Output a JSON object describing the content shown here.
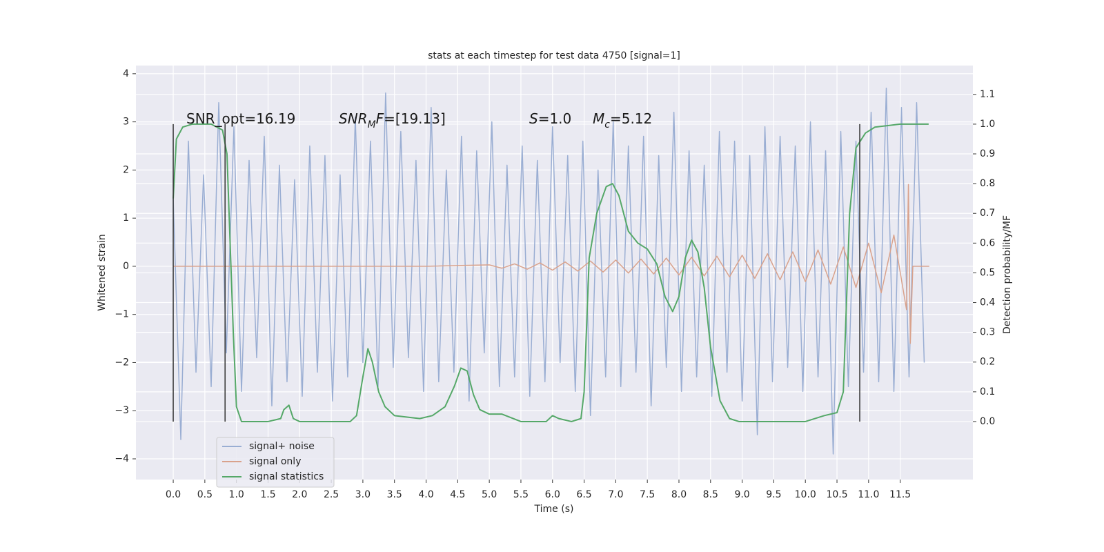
{
  "chart_data": {
    "type": "line",
    "title": "stats at each timestep for test data 4750 [signal=1]",
    "xlabel": "Time (s)",
    "ylabel": "Whitened strain",
    "y2label": "Detection probability/MF",
    "xlim": [
      -0.59,
      12.65
    ],
    "ylim": [
      -4.43,
      4.17
    ],
    "y2lim": [
      -0.195,
      1.197
    ],
    "xticks": [
      {
        "value": 0,
        "label": "0.0"
      },
      {
        "value": 0.5,
        "label": "0.5"
      },
      {
        "value": 1,
        "label": "1.0"
      },
      {
        "value": 1.5,
        "label": "1.5"
      },
      {
        "value": 2,
        "label": "2.0"
      },
      {
        "value": 2.5,
        "label": "2.5"
      },
      {
        "value": 3,
        "label": "3.0"
      },
      {
        "value": 3.5,
        "label": "3.5"
      },
      {
        "value": 4,
        "label": "4.0"
      },
      {
        "value": 4.5,
        "label": "4.5"
      },
      {
        "value": 5,
        "label": "5.0"
      },
      {
        "value": 5.5,
        "label": "5.5"
      },
      {
        "value": 6,
        "label": "6.0"
      },
      {
        "value": 6.5,
        "label": "6.5"
      },
      {
        "value": 7,
        "label": "7.0"
      },
      {
        "value": 7.5,
        "label": "7.5"
      },
      {
        "value": 8,
        "label": "8.0"
      },
      {
        "value": 8.5,
        "label": "8.5"
      },
      {
        "value": 9,
        "label": "9.0"
      },
      {
        "value": 9.5,
        "label": "9.5"
      },
      {
        "value": 10,
        "label": "10.0"
      },
      {
        "value": 10.5,
        "label": "10.5"
      },
      {
        "value": 11,
        "label": "11.0"
      },
      {
        "value": 11.5,
        "label": "11.5"
      }
    ],
    "yticks": [
      {
        "value": -4,
        "label": "−4"
      },
      {
        "value": -3,
        "label": "−3"
      },
      {
        "value": -2,
        "label": "−2"
      },
      {
        "value": -1,
        "label": "−1"
      },
      0,
      1,
      2,
      3,
      4
    ],
    "y2ticks": [
      {
        "value": 0,
        "label": "0.0"
      },
      {
        "value": 0.1,
        "label": "0.1"
      },
      {
        "value": 0.2,
        "label": "0.2"
      },
      {
        "value": 0.3,
        "label": "0.3"
      },
      {
        "value": 0.4,
        "label": "0.4"
      },
      {
        "value": 0.5,
        "label": "0.5"
      },
      {
        "value": 0.6,
        "label": "0.6"
      },
      {
        "value": 0.7,
        "label": "0.7"
      },
      {
        "value": 0.8,
        "label": "0.8"
      },
      {
        "value": 0.9,
        "label": "0.9"
      },
      {
        "value": 1,
        "label": "1.0"
      },
      {
        "value": 1.1,
        "label": "1.1"
      }
    ],
    "grid": true,
    "legend": "lower left",
    "series": [
      {
        "name": "signal+ noise",
        "color": "#9aaed3",
        "x": [
          0,
          0.12,
          0.24,
          0.36,
          0.48,
          0.6,
          0.72,
          0.84,
          0.96,
          1.08,
          1.2,
          1.32,
          1.44,
          1.56,
          1.68,
          1.8,
          1.92,
          2.04,
          2.16,
          2.28,
          2.4,
          2.52,
          2.64,
          2.76,
          2.88,
          3,
          3.12,
          3.24,
          3.36,
          3.48,
          3.6,
          3.72,
          3.84,
          3.96,
          4.08,
          4.2,
          4.32,
          4.44,
          4.56,
          4.68,
          4.8,
          4.92,
          5.04,
          5.16,
          5.28,
          5.4,
          5.52,
          5.64,
          5.76,
          5.88,
          6,
          6.12,
          6.24,
          6.36,
          6.48,
          6.6,
          6.72,
          6.84,
          6.96,
          7.08,
          7.2,
          7.32,
          7.44,
          7.56,
          7.68,
          7.8,
          7.92,
          8.04,
          8.16,
          8.28,
          8.4,
          8.52,
          8.64,
          8.76,
          8.88,
          9,
          9.12,
          9.24,
          9.36,
          9.48,
          9.6,
          9.72,
          9.84,
          9.96,
          10.08,
          10.2,
          10.32,
          10.44,
          10.56,
          10.68,
          10.8,
          10.92,
          11.04,
          11.16,
          11.28,
          11.4,
          11.52,
          11.64,
          11.76,
          11.88
        ],
        "values": [
          1.4,
          -3.6,
          2.6,
          -2.2,
          1.9,
          -2.5,
          3.4,
          -1.8,
          2.9,
          -2.6,
          2.2,
          -1.9,
          2.7,
          -2.9,
          2.1,
          -2.4,
          1.8,
          -2.7,
          2.5,
          -2.2,
          2.3,
          -2.8,
          1.9,
          -2.3,
          3.1,
          -2.0,
          2.6,
          -2.5,
          3.6,
          -2.1,
          2.8,
          -1.9,
          2.2,
          -2.6,
          3.3,
          -2.4,
          2.0,
          -2.2,
          2.7,
          -2.8,
          2.4,
          -1.8,
          3.0,
          -2.5,
          2.1,
          -2.3,
          2.5,
          -2.7,
          2.2,
          -2.4,
          2.9,
          -2.0,
          2.3,
          -2.6,
          2.6,
          -3.1,
          2.0,
          -2.3,
          3.0,
          -2.5,
          2.5,
          -2.2,
          2.7,
          -2.9,
          2.3,
          -2.1,
          3.2,
          -2.6,
          2.4,
          -2.3,
          2.1,
          -2.7,
          2.8,
          -2.2,
          2.6,
          -2.8,
          2.3,
          -3.5,
          2.9,
          -2.4,
          2.7,
          -2.1,
          2.5,
          -2.6,
          3.0,
          -2.3,
          2.4,
          -3.9,
          2.8,
          -2.5,
          2.6,
          -2.2,
          3.2,
          -2.4,
          3.7,
          -2.6,
          3.3,
          -2.3,
          3.4,
          -2.0
        ]
      },
      {
        "name": "signal only",
        "color": "#d9a28c",
        "x": [
          0,
          4.0,
          5.0,
          5.2,
          5.4,
          5.6,
          5.8,
          6.0,
          6.2,
          6.4,
          6.6,
          6.8,
          7.0,
          7.2,
          7.4,
          7.6,
          7.8,
          8.0,
          8.2,
          8.4,
          8.6,
          8.8,
          9.0,
          9.2,
          9.4,
          9.6,
          9.8,
          10.0,
          10.2,
          10.4,
          10.6,
          10.8,
          11.0,
          11.2,
          11.4,
          11.6,
          11.63,
          11.66,
          11.7,
          11.96
        ],
        "values": [
          0,
          0,
          0.03,
          -0.04,
          0.05,
          -0.06,
          0.07,
          -0.08,
          0.09,
          -0.1,
          0.11,
          -0.12,
          0.13,
          -0.14,
          0.15,
          -0.16,
          0.17,
          -0.18,
          0.19,
          -0.2,
          0.21,
          -0.22,
          0.23,
          -0.25,
          0.26,
          -0.28,
          0.3,
          -0.32,
          0.34,
          -0.37,
          0.4,
          -0.44,
          0.48,
          -0.55,
          0.65,
          -0.9,
          1.7,
          -1.6,
          0,
          0
        ]
      },
      {
        "name": "signal statistics",
        "color": "#55a868",
        "axis": "y2",
        "x": [
          0,
          0.05,
          0.15,
          0.3,
          0.6,
          0.78,
          0.85,
          0.95,
          1.0,
          1.08,
          1.5,
          1.7,
          1.75,
          1.83,
          1.9,
          2.0,
          2.8,
          2.9,
          3.0,
          3.08,
          3.15,
          3.25,
          3.35,
          3.5,
          3.9,
          4.1,
          4.3,
          4.45,
          4.55,
          4.65,
          4.75,
          4.85,
          5.0,
          5.2,
          5.5,
          5.9,
          6.0,
          6.1,
          6.3,
          6.45,
          6.5,
          6.58,
          6.7,
          6.85,
          6.95,
          7.05,
          7.2,
          7.35,
          7.5,
          7.65,
          7.78,
          7.9,
          8.0,
          8.1,
          8.2,
          8.3,
          8.4,
          8.5,
          8.65,
          8.8,
          8.95,
          10.0,
          10.3,
          10.5,
          10.6,
          10.7,
          10.8,
          10.95,
          11.1,
          11.5,
          11.95
        ],
        "values": [
          0.75,
          0.95,
          0.99,
          1.0,
          1.0,
          0.98,
          0.9,
          0.3,
          0.05,
          0.0,
          0.0,
          0.01,
          0.04,
          0.055,
          0.01,
          0.0,
          0.0,
          0.02,
          0.15,
          0.245,
          0.2,
          0.1,
          0.05,
          0.02,
          0.01,
          0.02,
          0.05,
          0.12,
          0.18,
          0.17,
          0.09,
          0.04,
          0.025,
          0.025,
          0.0,
          0.0,
          0.02,
          0.01,
          0.0,
          0.01,
          0.1,
          0.55,
          0.7,
          0.79,
          0.8,
          0.76,
          0.64,
          0.6,
          0.58,
          0.53,
          0.42,
          0.37,
          0.42,
          0.55,
          0.61,
          0.57,
          0.45,
          0.25,
          0.07,
          0.01,
          0.0,
          0.0,
          0.02,
          0.03,
          0.1,
          0.7,
          0.92,
          0.97,
          0.99,
          1.0,
          1.0
        ]
      }
    ],
    "vlines": {
      "color": "#333333",
      "axis": "y2",
      "x": [
        0,
        0.82,
        10.86
      ],
      "ymin": 0,
      "ymax": 1
    },
    "annotations": [
      {
        "parts": [
          {
            "text": "SNR_opt=16.19"
          }
        ]
      },
      {
        "parts": [
          {
            "text": "SNR",
            "italic": true
          },
          {
            "text": "M",
            "italic": true,
            "sub": true
          },
          {
            "text": "F",
            "italic": true
          },
          {
            "text": "=[19.13]"
          }
        ]
      },
      {
        "parts": [
          {
            "text": "S",
            "italic": true
          },
          {
            "text": "=1.0"
          }
        ]
      },
      {
        "parts": [
          {
            "text": "M",
            "italic": true
          },
          {
            "text": "c",
            "italic": true,
            "sub": true
          },
          {
            "text": "=5.12"
          }
        ]
      }
    ]
  }
}
